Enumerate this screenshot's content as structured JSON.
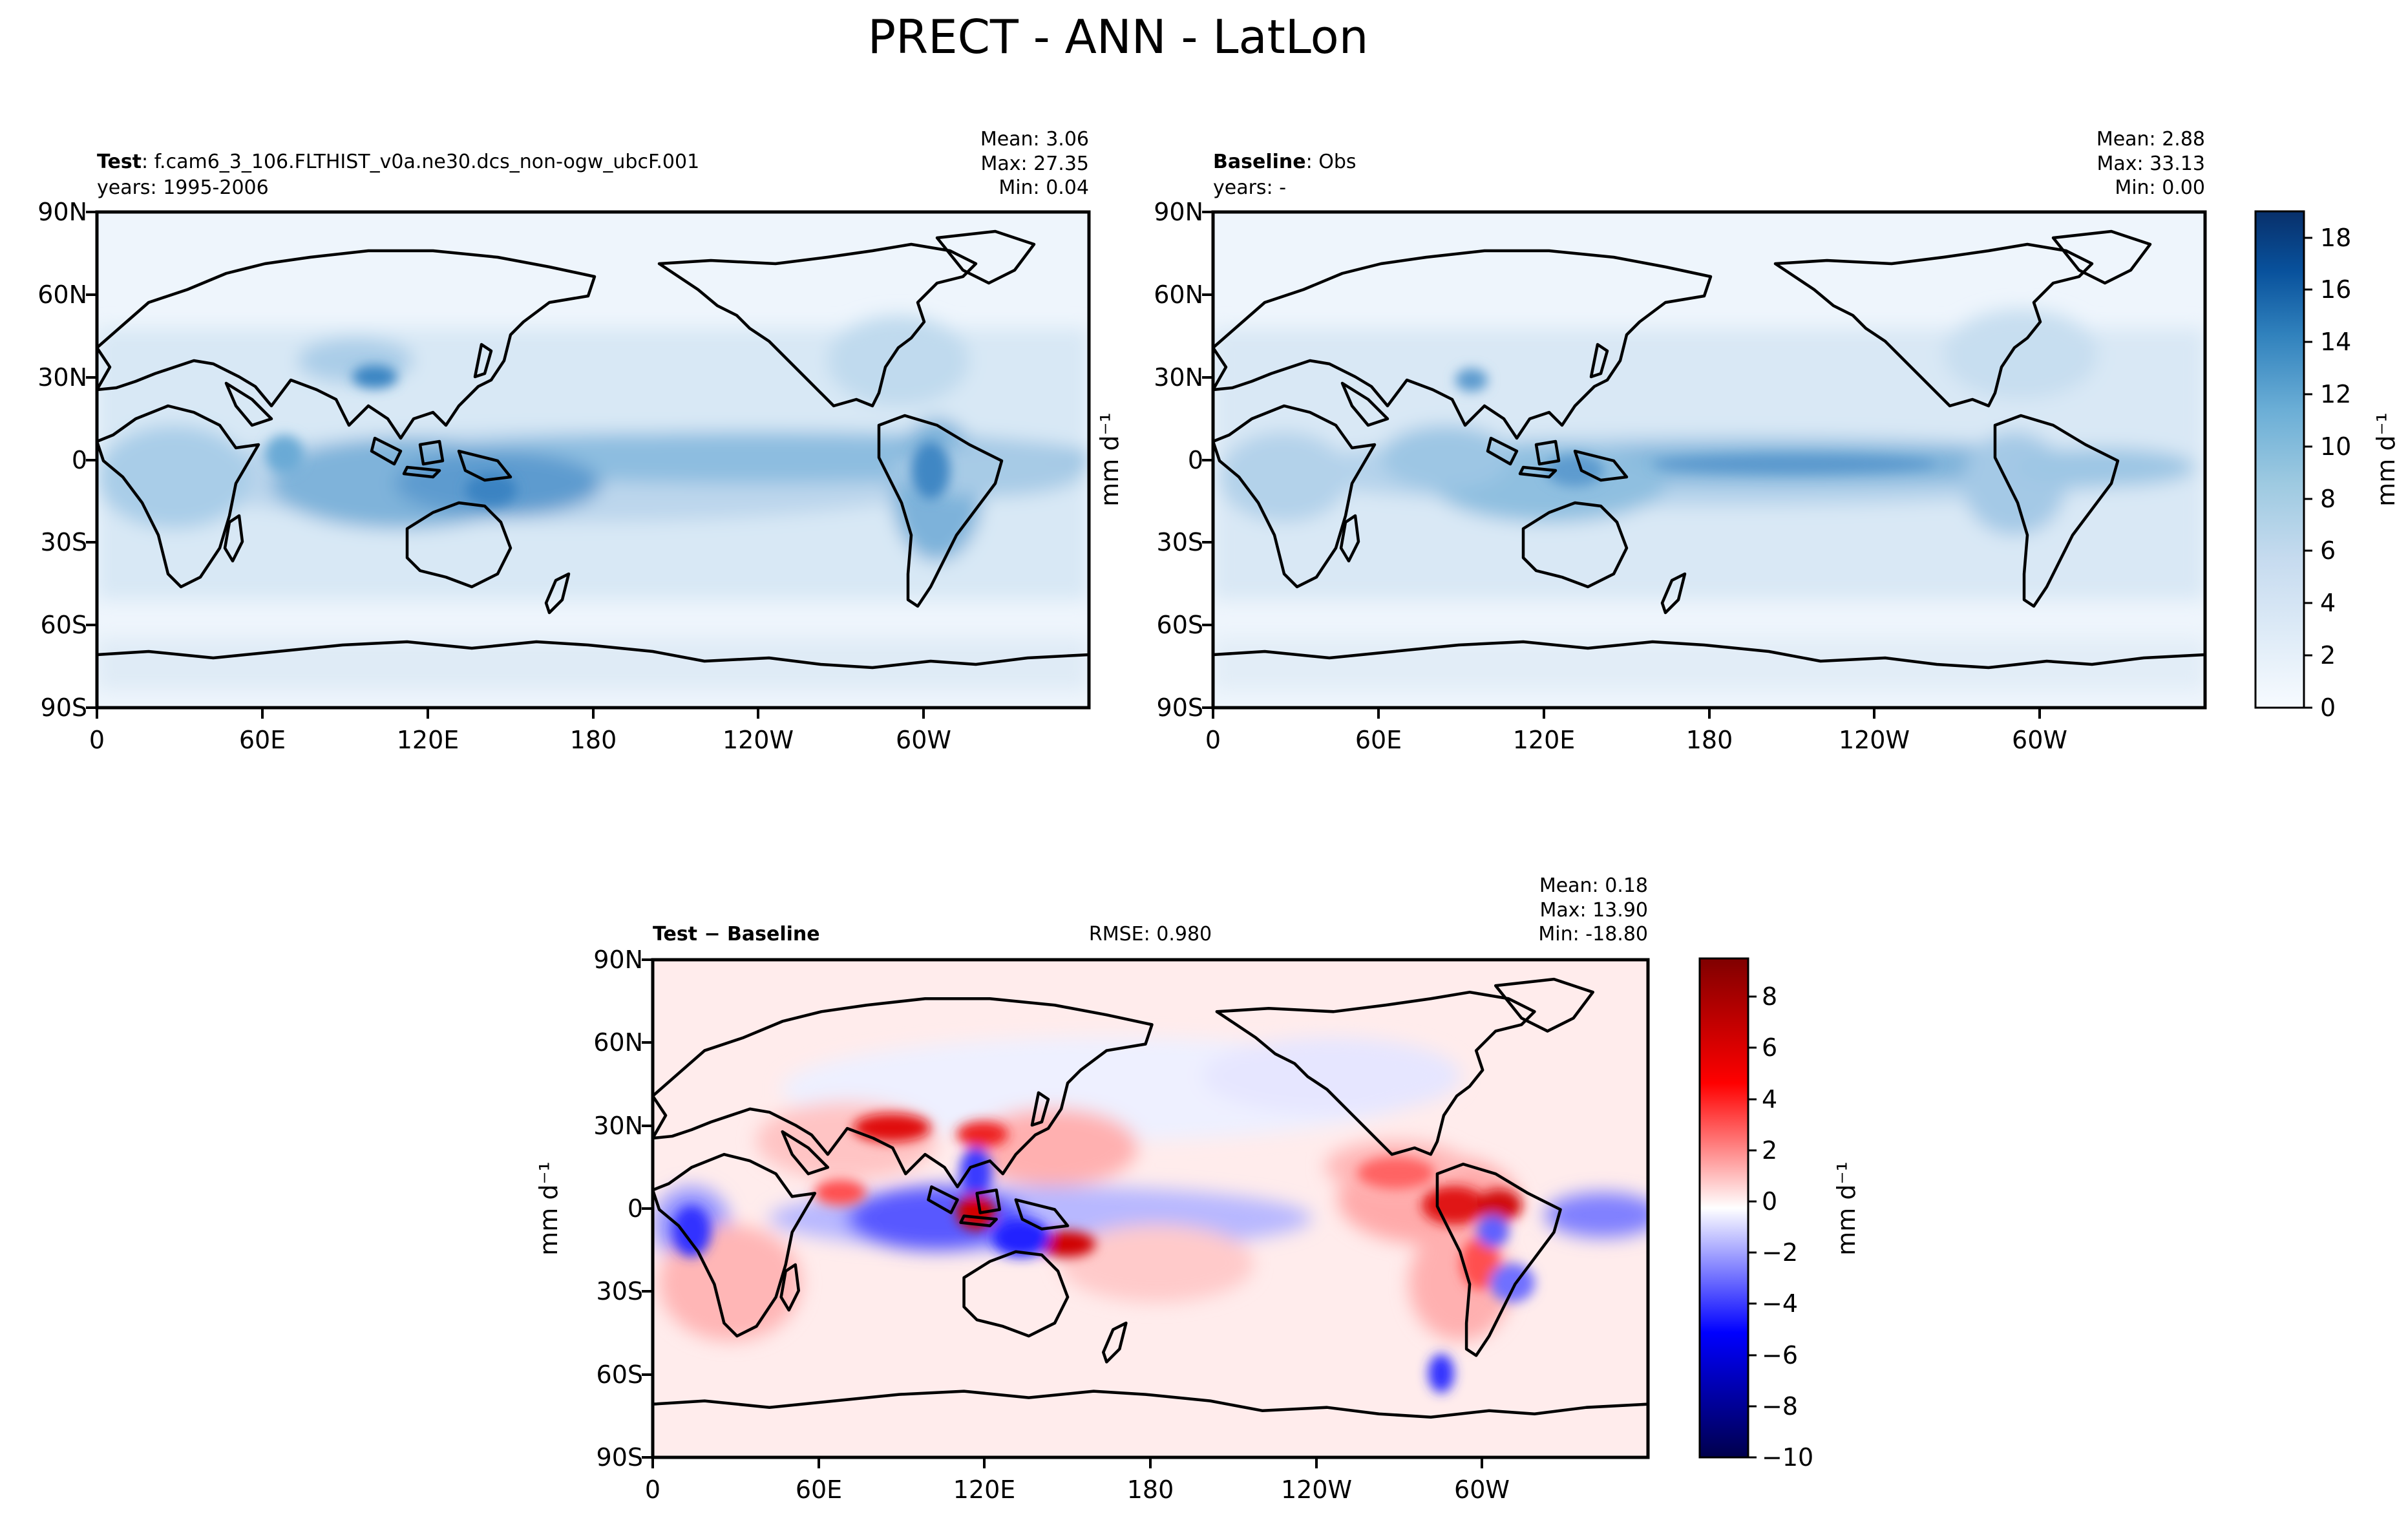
{
  "suptitle": "PRECT - ANN - LatLon",
  "panels": {
    "test": {
      "name_bold": "Test",
      "name_rest": ": f.cam6_3_106.FLTHIST_v0a.ne30.dcs_non-ogw_ubcF.001",
      "years": "years: 1995-2006",
      "stats": [
        "Mean:  3.06",
        "Max: 27.35",
        "Min:  0.04"
      ]
    },
    "baseline": {
      "name_bold": "Baseline",
      "name_rest": ": Obs",
      "years": "years: -",
      "stats": [
        "Mean:  2.88",
        "Max: 33.13",
        "Min:  0.00"
      ]
    },
    "diff": {
      "name_bold": "Test − Baseline",
      "rmse": "RMSE: 0.980",
      "stats": [
        "Mean:  0.18",
        "Max: 13.90",
        "Min: -18.80"
      ]
    }
  },
  "axes": {
    "lat_ticks": [
      "90N",
      "60N",
      "30N",
      "0",
      "30S",
      "60S",
      "90S"
    ],
    "lon_ticks": [
      "0",
      "60E",
      "120E",
      "180",
      "120W",
      "60W"
    ],
    "units_label": "mm d⁻¹"
  },
  "colorbars": {
    "precip": {
      "ticks": [
        "0",
        "2",
        "4",
        "6",
        "8",
        "10",
        "12",
        "14",
        "16",
        "18"
      ],
      "label": "mm d⁻¹",
      "cmap": "Blues"
    },
    "diff": {
      "ticks": [
        "−10",
        "−8",
        "−6",
        "−4",
        "−2",
        "0",
        "2",
        "4",
        "6",
        "8"
      ],
      "label": "mm d⁻¹",
      "cmap": "seismic"
    }
  },
  "chart_data": [
    {
      "type": "heatmap",
      "title": "Test: f.cam6_3_106.FLTHIST_v0a.ne30.dcs_non-ogw_ubcF.001",
      "subtitle": "years: 1995-2006",
      "variable": "PRECT",
      "stats": {
        "mean": 3.06,
        "max": 27.35,
        "min": 0.04
      },
      "xlim": [
        0,
        360
      ],
      "ylim": [
        -90,
        90
      ],
      "colorbar_range": [
        0,
        19
      ],
      "grid": false
    },
    {
      "type": "heatmap",
      "title": "Baseline: Obs",
      "subtitle": "years: -",
      "variable": "PRECT",
      "stats": {
        "mean": 2.88,
        "max": 33.13,
        "min": 0.0
      },
      "xlim": [
        0,
        360
      ],
      "ylim": [
        -90,
        90
      ],
      "colorbar_range": [
        0,
        19
      ],
      "grid": false
    },
    {
      "type": "heatmap",
      "title": "Test − Baseline",
      "variable": "PRECT",
      "stats": {
        "mean": 0.18,
        "max": 13.9,
        "min": -18.8,
        "rmse": 0.98
      },
      "xlim": [
        0,
        360
      ],
      "ylim": [
        -90,
        90
      ],
      "colorbar_range": [
        -10,
        9.5
      ],
      "grid": false
    }
  ]
}
